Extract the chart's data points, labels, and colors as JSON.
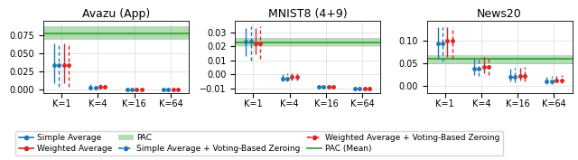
{
  "titles": [
    "Avazu (App)",
    "MNIST8 (4+9)",
    "News20"
  ],
  "xlabels": [
    "K=1",
    "K=4",
    "K=16",
    "K=64"
  ],
  "xticks": [
    0,
    1,
    2,
    3
  ],
  "avazu": {
    "ylim": [
      -0.005,
      0.095
    ],
    "yticks": [
      0.0,
      0.025,
      0.05,
      0.075
    ],
    "pac_mean": 0.0775,
    "pac_low": 0.069,
    "pac_high": 0.088,
    "simple_avg": [
      0.034,
      0.002,
      -0.001,
      -0.001
    ],
    "simple_avg_lo": [
      0.008,
      0.0,
      -0.002,
      -0.002
    ],
    "simple_avg_hi": [
      0.063,
      0.007,
      0.0,
      0.0
    ],
    "simple_vbz": [
      0.034,
      0.002,
      -0.001,
      -0.001
    ],
    "simple_vbz_lo": [
      0.003,
      0.0,
      -0.002,
      -0.002
    ],
    "simple_vbz_hi": [
      0.063,
      0.007,
      0.0,
      0.0
    ],
    "weighted_avg": [
      0.034,
      0.003,
      -0.001,
      -0.001
    ],
    "weighted_avg_lo": [
      0.008,
      0.001,
      -0.002,
      -0.001
    ],
    "weighted_avg_hi": [
      0.063,
      0.007,
      0.0,
      0.0
    ],
    "weighted_vbz": [
      0.034,
      0.003,
      -0.001,
      -0.001
    ],
    "weighted_vbz_lo": [
      0.003,
      0.001,
      -0.002,
      -0.001
    ],
    "weighted_vbz_hi": [
      0.063,
      0.007,
      0.0,
      0.0
    ]
  },
  "mnist8": {
    "ylim": [
      -0.013,
      0.038
    ],
    "yticks": [
      -0.01,
      0.0,
      0.01,
      0.02,
      0.03
    ],
    "pac_mean": 0.0225,
    "pac_low": 0.02,
    "pac_high": 0.026,
    "simple_avg": [
      0.023,
      -0.003,
      -0.009,
      -0.01
    ],
    "simple_avg_lo": [
      0.013,
      -0.005,
      -0.01,
      -0.011
    ],
    "simple_avg_hi": [
      0.033,
      0.0,
      -0.009,
      -0.009
    ],
    "simple_vbz": [
      0.023,
      -0.003,
      -0.009,
      -0.01
    ],
    "simple_vbz_lo": [
      0.01,
      -0.005,
      -0.01,
      -0.011
    ],
    "simple_vbz_hi": [
      0.034,
      0.001,
      -0.009,
      -0.009
    ],
    "weighted_avg": [
      0.022,
      -0.002,
      -0.009,
      -0.01
    ],
    "weighted_avg_lo": [
      0.014,
      -0.004,
      -0.01,
      -0.011
    ],
    "weighted_avg_hi": [
      0.033,
      0.001,
      -0.009,
      -0.009
    ],
    "weighted_vbz": [
      0.022,
      -0.002,
      -0.009,
      -0.01
    ],
    "weighted_vbz_lo": [
      0.011,
      -0.004,
      -0.01,
      -0.011
    ],
    "weighted_vbz_hi": [
      0.034,
      0.001,
      -0.009,
      -0.009
    ]
  },
  "news20": {
    "ylim": [
      -0.015,
      0.145
    ],
    "yticks": [
      0.0,
      0.05,
      0.1
    ],
    "pac_mean": 0.06,
    "pac_low": 0.048,
    "pac_high": 0.068,
    "simple_avg": [
      0.095,
      0.038,
      0.02,
      0.01
    ],
    "simple_avg_lo": [
      0.06,
      0.025,
      0.01,
      0.005
    ],
    "simple_avg_hi": [
      0.13,
      0.062,
      0.038,
      0.02
    ],
    "simple_vbz": [
      0.095,
      0.038,
      0.02,
      0.01
    ],
    "simple_vbz_lo": [
      0.055,
      0.022,
      0.008,
      0.004
    ],
    "simple_vbz_hi": [
      0.13,
      0.063,
      0.04,
      0.022
    ],
    "weighted_avg": [
      0.1,
      0.042,
      0.022,
      0.012
    ],
    "weighted_avg_lo": [
      0.065,
      0.028,
      0.012,
      0.008
    ],
    "weighted_avg_hi": [
      0.13,
      0.065,
      0.04,
      0.022
    ],
    "weighted_vbz": [
      0.1,
      0.042,
      0.022,
      0.012
    ],
    "weighted_vbz_lo": [
      0.06,
      0.025,
      0.01,
      0.006
    ],
    "weighted_vbz_hi": [
      0.13,
      0.065,
      0.042,
      0.024
    ]
  },
  "colors": {
    "blue": "#1f77b4",
    "red": "#d62728"
  },
  "pac_color": "#2ca02c",
  "pac_alpha": 0.35,
  "legend_fontsize": 6.5,
  "title_fontsize": 9,
  "tick_fontsize": 7
}
